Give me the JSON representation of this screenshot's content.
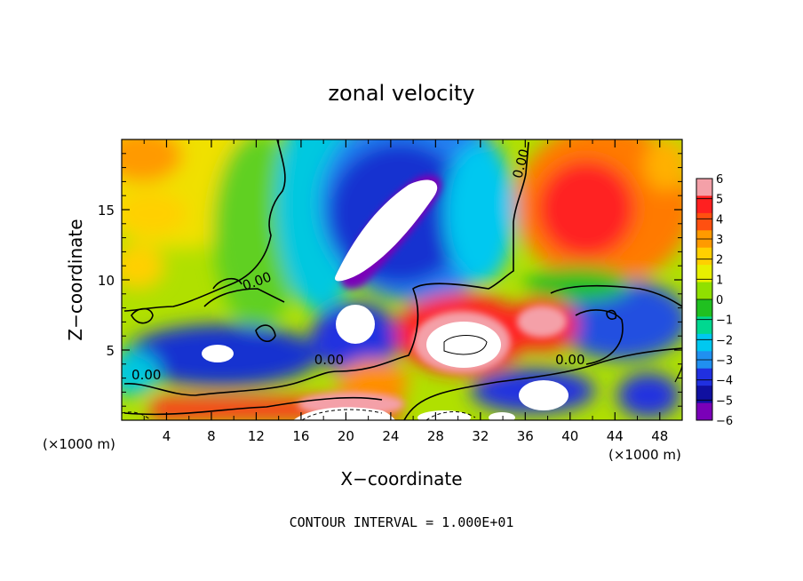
{
  "chart_data": {
    "type": "heatmap",
    "title": "zonal velocity",
    "xlabel": "X−coordinate",
    "ylabel": "Z−coordinate",
    "x_unit_left": "(×1000 m)",
    "x_unit_right": "(×1000 m)",
    "footer": "CONTOUR INTERVAL = 1.000E+01",
    "xlim": [
      0,
      50
    ],
    "ylim": [
      0,
      20
    ],
    "x_ticks": [
      4,
      8,
      12,
      16,
      20,
      24,
      28,
      32,
      36,
      40,
      44,
      48
    ],
    "y_ticks": [
      5,
      10,
      15
    ],
    "colorbar": {
      "levels": [
        6,
        5,
        4,
        3,
        2,
        1,
        0,
        -1,
        -2,
        -3,
        -4,
        -5,
        -6
      ],
      "colors": [
        "#f4a0a8",
        "#ff2020",
        "#ff5010",
        "#ff9a00",
        "#ffd000",
        "#e8f000",
        "#90e000",
        "#20c020",
        "#00d890",
        "#00c8f0",
        "#2090f0",
        "#2030e0",
        "#1010a0",
        "#7a00b8"
      ]
    },
    "contour_labels": [
      {
        "text": "0.00",
        "x": 2.2,
        "y": 2.9
      },
      {
        "text": "0.00",
        "x": 18.5,
        "y": 4.0
      },
      {
        "text": "0.00",
        "x": 12.2,
        "y": 9.6
      },
      {
        "text": "0.00",
        "x": 40.0,
        "y": 4.0
      },
      {
        "text": "0.00",
        "x": 36.0,
        "y": 18.2
      }
    ]
  }
}
